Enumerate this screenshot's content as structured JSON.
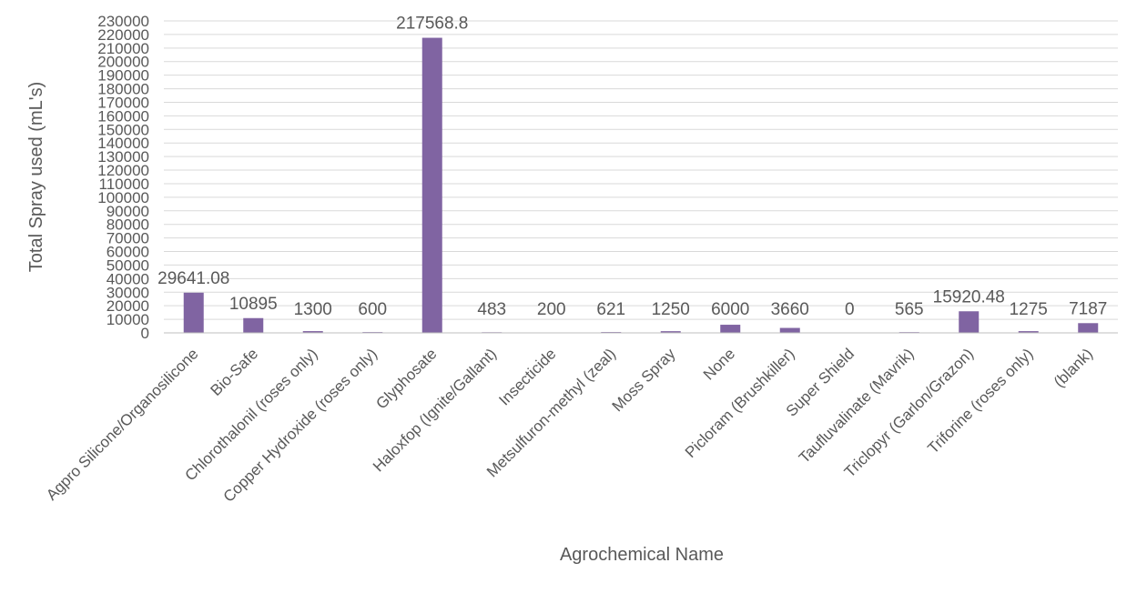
{
  "chart_data": {
    "type": "bar",
    "title": "",
    "xlabel": "Agrochemical Name",
    "ylabel": "Total Spray used (mL's)",
    "categories": [
      "Agpro Silicone/Organosilicone",
      "Bio-Safe",
      "Chlorothalonil (roses only)",
      "Copper Hydroxide (roses only)",
      "Glyphosate",
      "Haloxfop (Ignite/Gallant)",
      "Insecticide",
      "Metsulfuron-methyl (zeal)",
      "Moss Spray",
      "None",
      "Picloram (Brushkiller)",
      "Super Shield",
      "Taufluvalinate (Mavrik)",
      "Triclopyr (Garlon/Grazon)",
      "Triforine (roses only)",
      "(blank)"
    ],
    "values": [
      29641.08,
      10895,
      1300,
      600,
      217568.8,
      483,
      200,
      621,
      1250,
      6000,
      3660,
      0,
      565,
      15920.48,
      1275,
      7187
    ],
    "data_labels": [
      "29641.08",
      "10895",
      "1300",
      "600",
      "217568.8",
      "483",
      "200",
      "621",
      "1250",
      "6000",
      "3660",
      "0",
      "565",
      "15920.48",
      "1275",
      "7187"
    ],
    "ylim": [
      0,
      230000
    ],
    "ytick_step": 10000,
    "grid": true,
    "legend": "none",
    "bar_color": "#8064a2"
  }
}
